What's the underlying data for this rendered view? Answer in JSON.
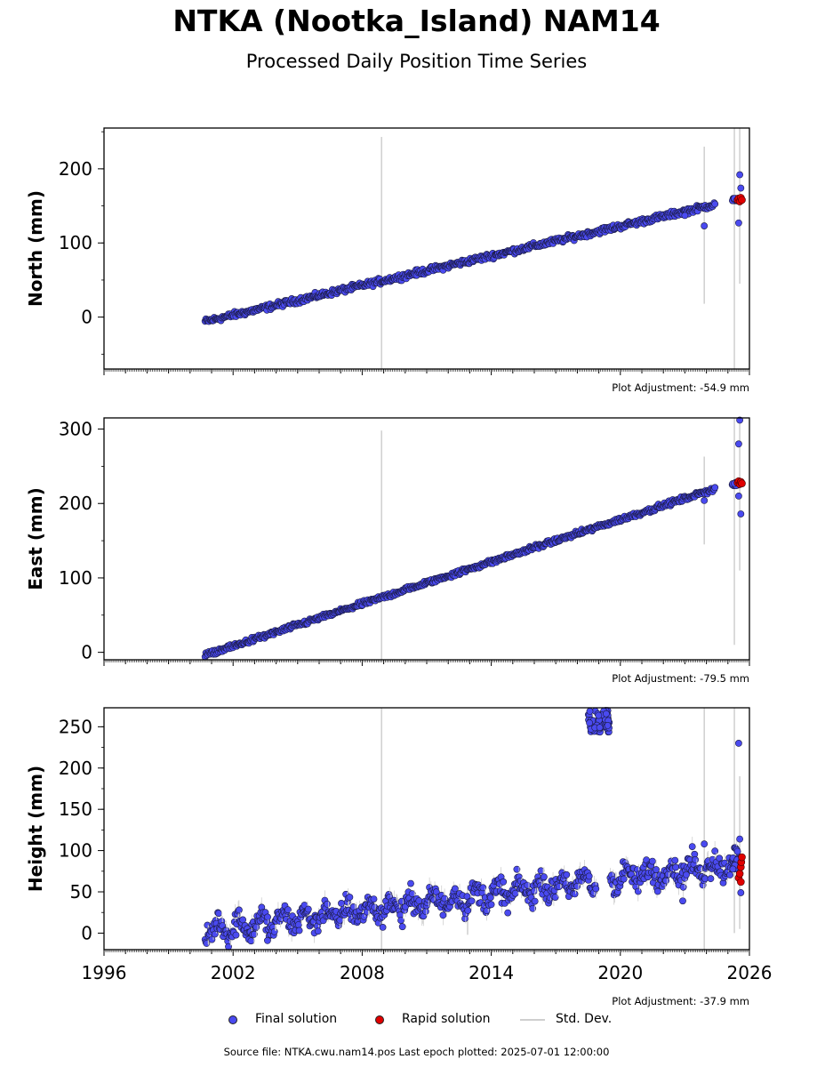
{
  "title": "NTKA (Nootka_Island) NAM14",
  "subtitle": "Processed Daily Position Time Series",
  "footer": "Source file: NTKA.cwu.nam14.pos  Last epoch plotted: 2025-07-01 12:00:00",
  "legend": {
    "final": "Final solution",
    "rapid": "Rapid solution",
    "std": "Std. Dev."
  },
  "colors": {
    "final": "#4a4af0",
    "rapid": "#e00000",
    "std": "#cfcfcf",
    "edge": "#1a1a40"
  },
  "chart_data": [
    {
      "type": "scatter",
      "ylabel": "North (mm)",
      "adjustment": "Plot Adjustment: -54.9 mm",
      "xlim": [
        1996,
        2026
      ],
      "ylim": [
        -70,
        255
      ],
      "yticks": [
        0,
        100,
        200
      ],
      "xticks": [],
      "trend": {
        "x": [
          2000.7,
          2024.4
        ],
        "y": [
          -6,
          152
        ],
        "noise": 3
      },
      "extra_final": [
        [
          2023.9,
          123
        ],
        [
          2023.0,
          137
        ],
        [
          2025.3,
          160
        ],
        [
          2025.5,
          127
        ],
        [
          2025.55,
          192
        ],
        [
          2025.6,
          174
        ],
        [
          2025.5,
          157
        ]
      ],
      "rapid": [
        [
          2025.45,
          158
        ],
        [
          2025.5,
          160
        ],
        [
          2025.55,
          156
        ],
        [
          2025.6,
          161
        ],
        [
          2025.65,
          158
        ]
      ],
      "std_bars": [
        [
          2008.9,
          -70,
          243
        ],
        [
          2023.9,
          18,
          230
        ],
        [
          2025.3,
          -70,
          255
        ],
        [
          2025.55,
          45,
          255
        ]
      ]
    },
    {
      "type": "scatter",
      "ylabel": "East (mm)",
      "adjustment": "Plot Adjustment: -79.5 mm",
      "xlim": [
        1996,
        2026
      ],
      "ylim": [
        -10,
        315
      ],
      "yticks": [
        0,
        100,
        200,
        300
      ],
      "xticks": [],
      "trend": {
        "x": [
          2000.7,
          2024.4
        ],
        "y": [
          -4,
          220
        ],
        "noise": 2.5
      },
      "extra_final": [
        [
          2023.9,
          204
        ],
        [
          2025.5,
          280
        ],
        [
          2025.55,
          312
        ],
        [
          2025.5,
          210
        ],
        [
          2025.6,
          186
        ],
        [
          2025.3,
          227
        ]
      ],
      "rapid": [
        [
          2025.45,
          228
        ],
        [
          2025.5,
          230
        ],
        [
          2025.55,
          226
        ],
        [
          2025.6,
          229
        ],
        [
          2025.65,
          227
        ]
      ],
      "std_bars": [
        [
          2008.9,
          -10,
          298
        ],
        [
          2023.9,
          145,
          263
        ],
        [
          2025.3,
          10,
          315
        ],
        [
          2025.55,
          110,
          315
        ]
      ]
    },
    {
      "type": "scatter",
      "ylabel": "Height (mm)",
      "adjustment": "Plot Adjustment: -37.9 mm",
      "xlim": [
        1996,
        2026
      ],
      "ylim": [
        -20,
        273
      ],
      "yticks": [
        0,
        50,
        100,
        150,
        200,
        250
      ],
      "xticks": [
        "1996",
        "2002",
        "2008",
        "2014",
        "2020",
        "2026"
      ],
      "trend": {
        "x": [
          2000.7,
          2025.5
        ],
        "y": [
          3,
          85
        ],
        "noise": 11
      },
      "gap": [
        2018.9,
        2019.5
      ],
      "cluster": {
        "x": [
          2018.5,
          2019.5
        ],
        "y": [
          243,
          270
        ]
      },
      "extra_final": [
        [
          2003.6,
          -9
        ],
        [
          2022.9,
          39
        ],
        [
          2023.9,
          108
        ],
        [
          2025.5,
          230
        ],
        [
          2025.55,
          114
        ],
        [
          2025.6,
          49
        ],
        [
          2024.2,
          66
        ]
      ],
      "rapid": [
        [
          2025.5,
          67
        ],
        [
          2025.55,
          72
        ],
        [
          2025.6,
          80
        ],
        [
          2025.62,
          86
        ],
        [
          2025.65,
          92
        ],
        [
          2025.6,
          62
        ]
      ],
      "std_bars": [
        [
          2008.9,
          -20,
          273
        ],
        [
          2012.9,
          -2,
          58
        ],
        [
          2023.9,
          -20,
          273
        ],
        [
          2025.3,
          0,
          273
        ],
        [
          2025.55,
          5,
          190
        ]
      ]
    }
  ]
}
